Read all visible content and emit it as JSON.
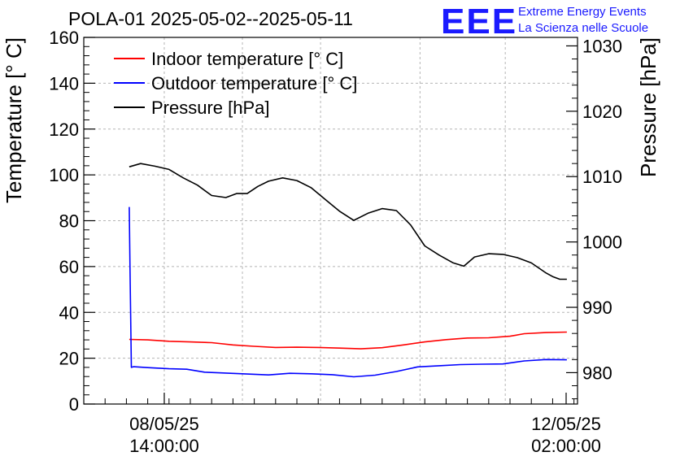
{
  "logo": {
    "mark": "EEE",
    "line1": "Extreme Energy Events",
    "line2": "La Scienza nelle Scuole",
    "color": "#1a1aff"
  },
  "chart_data": {
    "type": "line",
    "title": "POLA-01 2025-05-02--2025-05-11",
    "xlabel": "",
    "ylabel": "Temperature [° C]",
    "y2label": "Pressure [hPa]",
    "xlim": [
      0,
      69.5
    ],
    "ylim": [
      0,
      160
    ],
    "y2lim": [
      975.2,
      1031.3
    ],
    "grid": true,
    "legend_position": "top-left",
    "x_unit": "hours since 08/05/25 02:40",
    "x_ticks": [
      {
        "x": 11.33,
        "date": "08/05/25",
        "time": "14:00:00"
      },
      {
        "x": 71.33,
        "date": "12/05/25",
        "time": "02:00:00"
      }
    ],
    "y_ticks": [
      0,
      20,
      40,
      60,
      80,
      100,
      120,
      140,
      160
    ],
    "y2_ticks": [
      980,
      990,
      1000,
      1010,
      1020,
      1030
    ],
    "series": [
      {
        "name": "Indoor temperature [° C]",
        "axis": "left",
        "color": "#ff0000",
        "x": [
          6.4,
          9,
          12,
          15,
          18,
          21,
          24,
          27,
          30,
          33,
          36,
          39,
          42,
          45,
          48,
          51,
          54,
          57,
          60,
          62,
          65,
          68
        ],
        "y": [
          28.2,
          28,
          27.4,
          27.1,
          26.8,
          25.8,
          25.2,
          24.7,
          24.8,
          24.7,
          24.4,
          24.1,
          24.6,
          25.8,
          27.1,
          28.1,
          28.8,
          28.9,
          29.6,
          30.7,
          31.2,
          31.4
        ]
      },
      {
        "name": "Outdoor temperature [° C]",
        "axis": "left",
        "color": "#0000ff",
        "x": [
          6.4,
          6.5,
          6.7,
          7,
          9,
          12,
          14.5,
          17,
          20,
          23,
          26,
          29,
          32,
          35,
          38,
          41,
          44,
          47,
          50,
          53,
          56,
          59,
          62,
          65,
          68
        ],
        "y": [
          86,
          60,
          16,
          16.3,
          15.9,
          15.4,
          15.2,
          13.9,
          13.5,
          13.1,
          12.7,
          13.4,
          13.2,
          12.8,
          11.9,
          12.6,
          14.2,
          16.2,
          16.7,
          17.2,
          17.4,
          17.5,
          18.8,
          19.4,
          19.3
        ]
      },
      {
        "name": "Pressure [hPa]",
        "axis": "right",
        "color": "#000000",
        "x": [
          6.4,
          8,
          10,
          12,
          14,
          16,
          18,
          20,
          21.5,
          23,
          24.5,
          26,
          28,
          30,
          32,
          34,
          36,
          38,
          40,
          42,
          44,
          46,
          48,
          50,
          52,
          53.5,
          55,
          57,
          59,
          61,
          63,
          65,
          66,
          67,
          68
        ],
        "y": [
          1011.5,
          1012,
          1011.6,
          1011.1,
          1009.8,
          1008.7,
          1007.1,
          1006.8,
          1007.4,
          1007.4,
          1008.5,
          1009.3,
          1009.8,
          1009.4,
          1008.3,
          1006.5,
          1004.7,
          1003.3,
          1004.4,
          1005.1,
          1004.8,
          1002.6,
          999.4,
          998,
          996.8,
          996.3,
          997.7,
          998.2,
          998.1,
          997.6,
          996.8,
          995.3,
          994.7,
          994.3,
          994.3
        ]
      }
    ]
  }
}
